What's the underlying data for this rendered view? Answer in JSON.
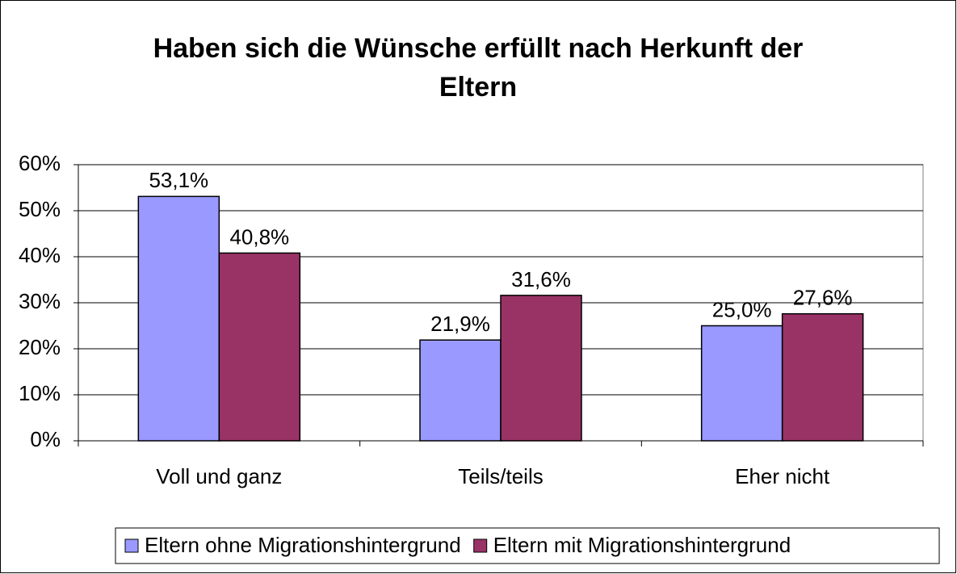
{
  "chart_data": {
    "type": "bar",
    "title": "Haben sich die Wünsche erfüllt nach Herkunft der Eltern",
    "categories": [
      "Voll und ganz",
      "Teils/teils",
      "Eher nicht"
    ],
    "series": [
      {
        "name": "Eltern ohne Migrationshintergrund",
        "color": "#9999ff",
        "values": [
          53.1,
          21.9,
          25.0
        ],
        "value_labels": [
          "53,1%",
          "21,9%",
          "25,0%"
        ]
      },
      {
        "name": "Eltern mit Migrationshintergrund",
        "color": "#993366",
        "values": [
          40.8,
          31.6,
          27.6
        ],
        "value_labels": [
          "40,8%",
          "31,6%",
          "27,6%"
        ]
      }
    ],
    "ylim": [
      0,
      60
    ],
    "yticks": [
      {
        "value": 0,
        "label": "0%"
      },
      {
        "value": 10,
        "label": "10%"
      },
      {
        "value": 20,
        "label": "20%"
      },
      {
        "value": 30,
        "label": "30%"
      },
      {
        "value": 40,
        "label": "40%"
      },
      {
        "value": 50,
        "label": "50%"
      },
      {
        "value": 60,
        "label": "60%"
      }
    ],
    "grid": true,
    "legend": "bottom"
  }
}
